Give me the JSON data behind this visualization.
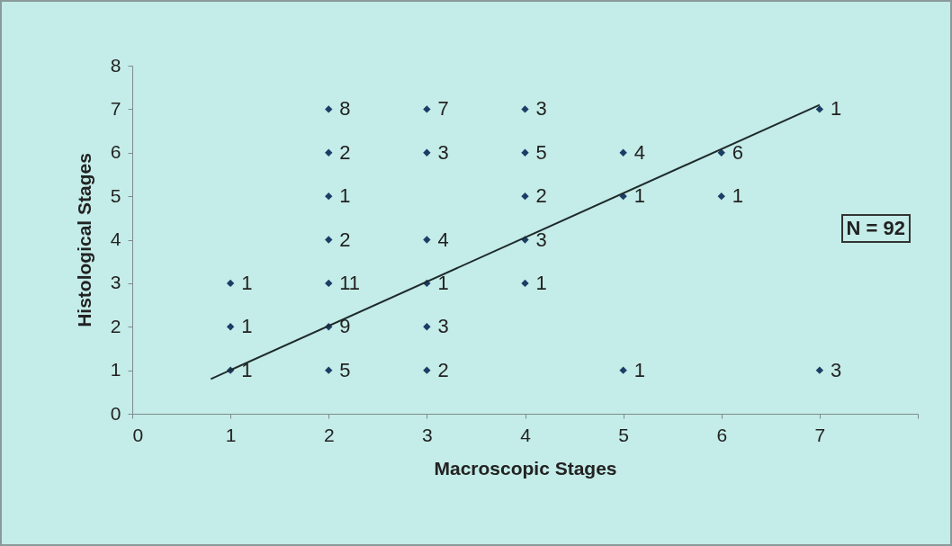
{
  "chart_data": {
    "type": "scatter",
    "xlabel": "Macroscopic Stages",
    "ylabel": "Histological Stages",
    "xlim": [
      0,
      8
    ],
    "xticks": [
      0,
      1,
      2,
      3,
      4,
      5,
      6,
      7,
      {
        "value": 8,
        "label": null
      }
    ],
    "ylim": [
      0,
      8
    ],
    "yticks": [
      0,
      1,
      2,
      3,
      4,
      5,
      6,
      7,
      8
    ],
    "grid": false,
    "annotations": [
      "N = 92",
      {
        "text": "1",
        "x": 1,
        "y": 1
      },
      {
        "text": "1",
        "x": 1,
        "y": 2
      },
      {
        "text": "1",
        "x": 1,
        "y": 3
      },
      {
        "text": "5",
        "x": 2,
        "y": 1
      },
      {
        "text": "9",
        "x": 2,
        "y": 2
      },
      {
        "text": "11",
        "x": 2,
        "y": 3
      },
      {
        "text": "2",
        "x": 2,
        "y": 4
      },
      {
        "text": "1",
        "x": 2,
        "y": 5
      },
      {
        "text": "2",
        "x": 2,
        "y": 6
      },
      {
        "text": "8",
        "x": 2,
        "y": 7
      },
      {
        "text": "2",
        "x": 3,
        "y": 1
      },
      {
        "text": "3",
        "x": 3,
        "y": 2
      },
      {
        "text": "1",
        "x": 3,
        "y": 3
      },
      {
        "text": "4",
        "x": 3,
        "y": 4
      },
      {
        "text": "3",
        "x": 3,
        "y": 6
      },
      {
        "text": "7",
        "x": 3,
        "y": 7
      },
      {
        "text": "1",
        "x": 4,
        "y": 3
      },
      {
        "text": "3",
        "x": 4,
        "y": 4
      },
      {
        "text": "2",
        "x": 4,
        "y": 5
      },
      {
        "text": "5",
        "x": 4,
        "y": 6
      },
      {
        "text": "3",
        "x": 4,
        "y": 7
      },
      {
        "text": "1",
        "x": 5,
        "y": 1
      },
      {
        "text": "1",
        "x": 5,
        "y": 5
      },
      {
        "text": "4",
        "x": 5,
        "y": 6
      },
      {
        "text": "1",
        "x": 6,
        "y": 5
      },
      {
        "text": "6",
        "x": 6,
        "y": 6
      },
      {
        "text": "3",
        "x": 7,
        "y": 1
      },
      {
        "text": "1",
        "x": 7,
        "y": 7
      }
    ],
    "series": [
      {
        "marker": "diamond",
        "color": "#1b3d66",
        "x": [
          1,
          1,
          1,
          2,
          2,
          2,
          2,
          2,
          2,
          2,
          3,
          3,
          3,
          3,
          3,
          3,
          4,
          4,
          4,
          4,
          4,
          5,
          5,
          5,
          6,
          6,
          7,
          7
        ],
        "values": [
          1,
          2,
          3,
          1,
          2,
          3,
          4,
          5,
          6,
          7,
          1,
          2,
          3,
          4,
          6,
          7,
          3,
          4,
          5,
          6,
          7,
          1,
          5,
          6,
          5,
          6,
          1,
          7
        ]
      },
      {
        "type": "line",
        "marker": "none",
        "color": "#1e2b2b",
        "line_style": "solid",
        "x": [
          0.8,
          7
        ],
        "values": [
          0.8,
          7.1
        ]
      }
    ]
  }
}
